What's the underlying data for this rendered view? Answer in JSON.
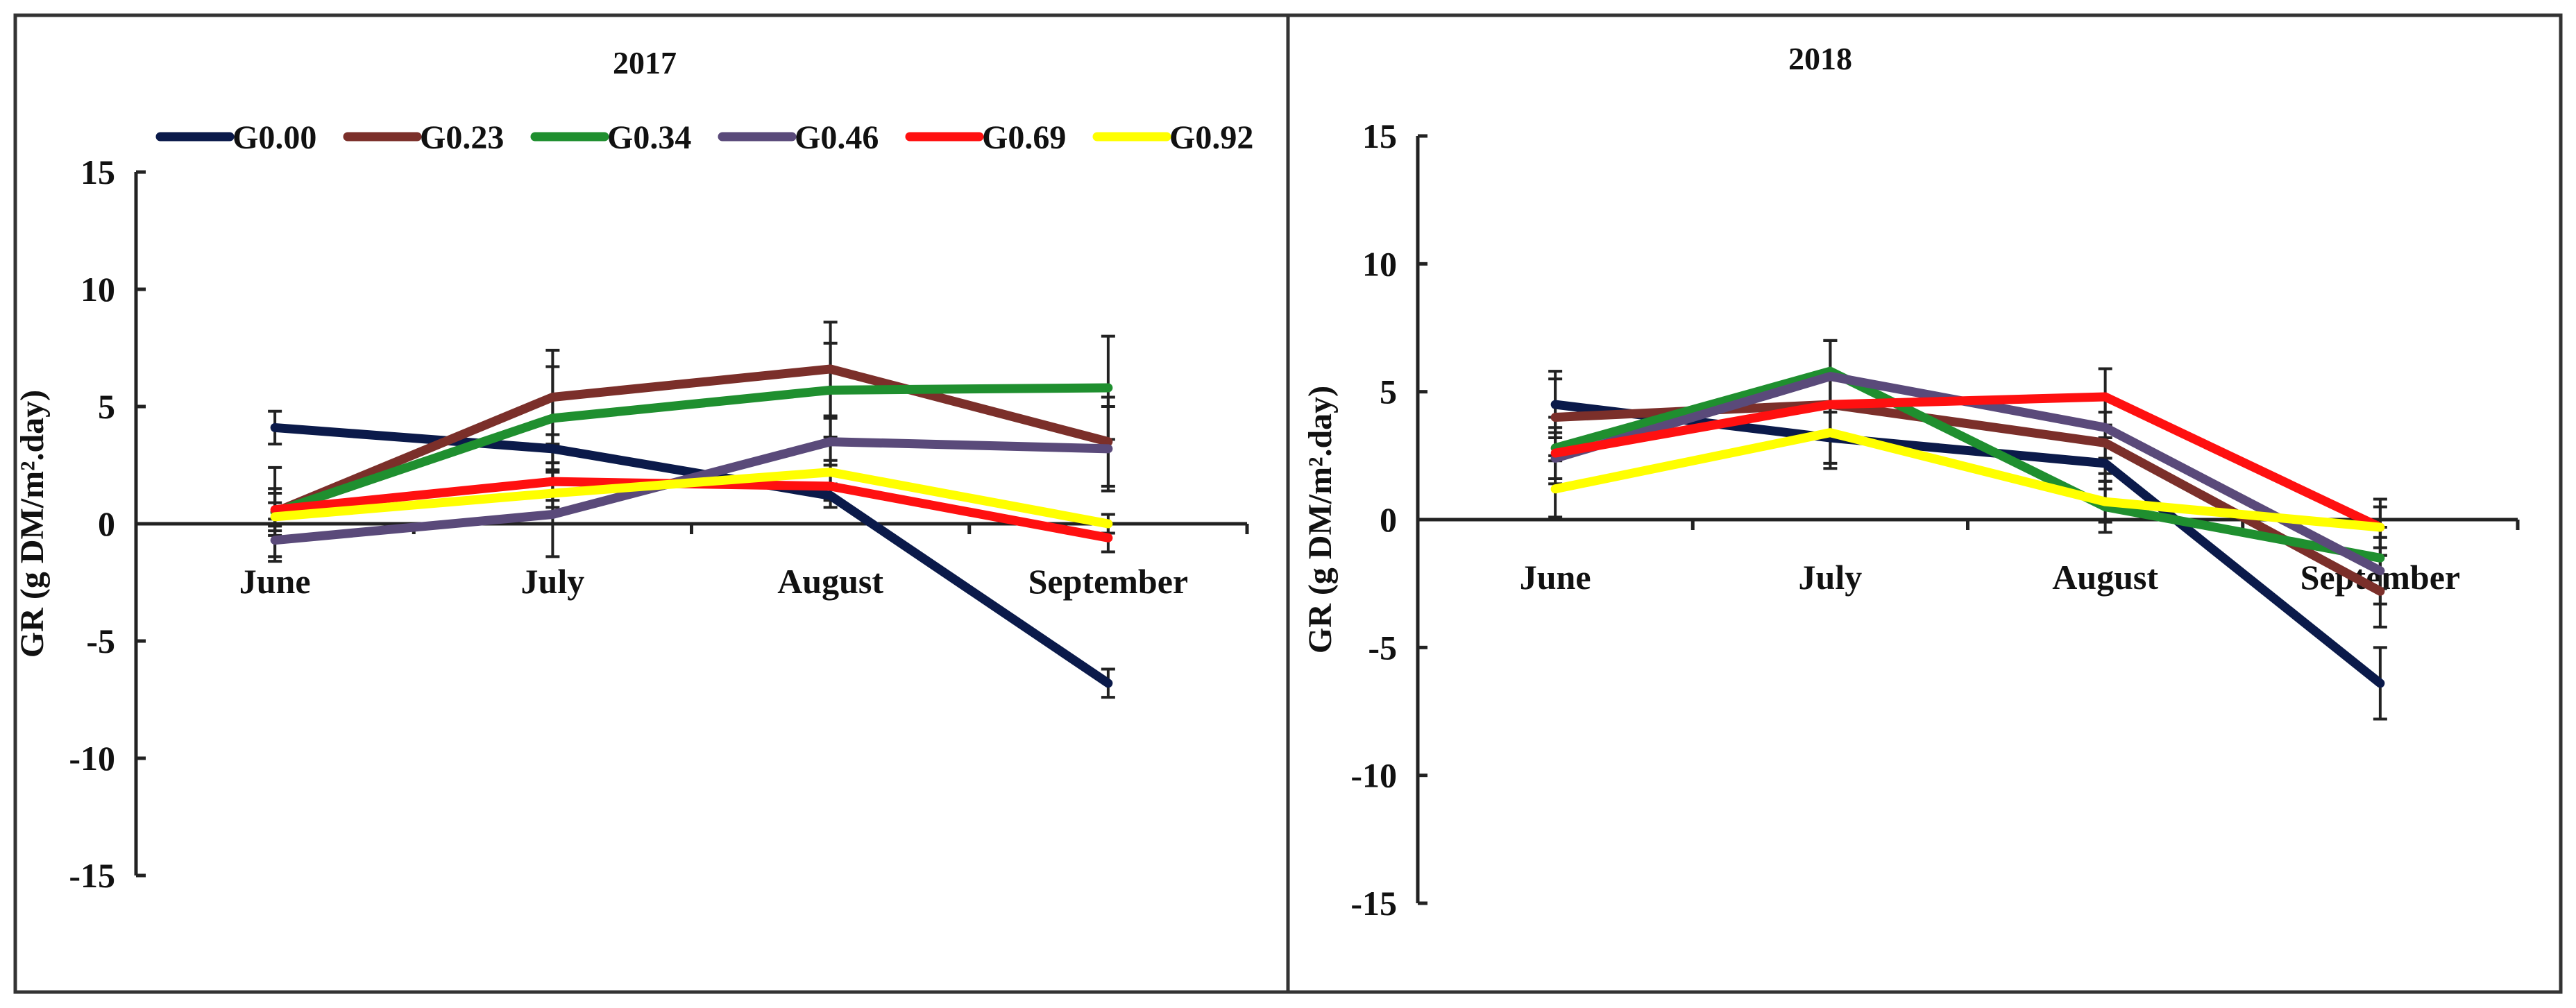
{
  "legend": [
    "G0.00",
    "G0.23",
    "G0.34",
    "G0.46",
    "G0.69",
    "G0.92"
  ],
  "colors": {
    "G0.00": "#0b1a4a",
    "G0.23": "#7b2f2a",
    "G0.34": "#1f8f2f",
    "G0.46": "#5a4a7a",
    "G0.69": "#ff1010",
    "G0.92": "#ffff00"
  },
  "chart_data": [
    {
      "type": "line",
      "title": "2017",
      "ylabel": "GR (g DM/m².day)",
      "categories": [
        "June",
        "July",
        "August",
        "September"
      ],
      "ylim": [
        -15,
        15
      ],
      "yticks": [
        "15",
        "10",
        "5",
        "0",
        "-5",
        "-10",
        "-15"
      ],
      "grid": false,
      "legend_position": "top",
      "series": [
        {
          "name": "G0.00",
          "values": [
            4.1,
            3.2,
            1.2,
            -6.8
          ],
          "errors": [
            0.7,
            0.6,
            0.5,
            0.6
          ]
        },
        {
          "name": "G0.23",
          "values": [
            0.5,
            5.4,
            6.6,
            3.5
          ],
          "errors": [
            1.9,
            2.0,
            2.0,
            1.9
          ]
        },
        {
          "name": "G0.34",
          "values": [
            0.5,
            4.5,
            5.7,
            5.8
          ],
          "errors": [
            1.0,
            2.2,
            2.0,
            2.2
          ]
        },
        {
          "name": "G0.46",
          "values": [
            -0.7,
            0.4,
            3.5,
            3.2
          ],
          "errors": [
            0.9,
            1.8,
            1.0,
            1.8
          ]
        },
        {
          "name": "G0.69",
          "values": [
            0.6,
            1.8,
            1.6,
            -0.6
          ],
          "errors": [
            0.7,
            0.8,
            0.6,
            0.6
          ]
        },
        {
          "name": "G0.92",
          "values": [
            0.3,
            1.3,
            2.2,
            0.0
          ],
          "errors": [
            0.6,
            0.6,
            0.5,
            0.4
          ]
        }
      ]
    },
    {
      "type": "line",
      "title": "2018",
      "ylabel": "GR (g DM/m².day)",
      "categories": [
        "June",
        "July",
        "August",
        "September"
      ],
      "ylim": [
        -15,
        15
      ],
      "yticks": [
        "15",
        "10",
        "5",
        "0",
        "-5",
        "-10",
        "-15"
      ],
      "grid": false,
      "series": [
        {
          "name": "G0.00",
          "values": [
            4.5,
            3.2,
            2.2,
            -6.4
          ],
          "errors": [
            1.3,
            1.2,
            1.0,
            1.4
          ]
        },
        {
          "name": "G0.23",
          "values": [
            4.0,
            4.5,
            3.0,
            -2.8
          ],
          "errors": [
            1.5,
            1.2,
            1.2,
            1.4
          ]
        },
        {
          "name": "G0.34",
          "values": [
            2.8,
            5.8,
            0.5,
            -1.5
          ],
          "errors": [
            1.2,
            1.2,
            1.0,
            1.2
          ]
        },
        {
          "name": "G0.46",
          "values": [
            2.4,
            5.6,
            3.6,
            -2.0
          ],
          "errors": [
            1.0,
            1.4,
            1.2,
            1.3
          ]
        },
        {
          "name": "G0.69",
          "values": [
            2.6,
            4.5,
            4.8,
            -0.3
          ],
          "errors": [
            1.0,
            1.2,
            1.1,
            1.1
          ]
        },
        {
          "name": "G0.92",
          "values": [
            1.2,
            3.4,
            0.7,
            -0.3
          ],
          "errors": [
            1.1,
            1.2,
            0.8,
            0.8
          ]
        }
      ]
    }
  ]
}
